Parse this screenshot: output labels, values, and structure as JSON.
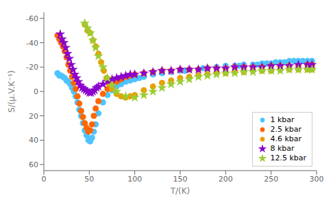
{
  "chart_data": {
    "type": "scatter",
    "xlabel": "T/(K)",
    "ylabel": "S/(μ.V.K⁻¹)",
    "xlim": [
      0,
      300
    ],
    "ylim": [
      65,
      -65
    ],
    "xticks": [
      0,
      50,
      100,
      150,
      200,
      250,
      300
    ],
    "yticks": [
      -60,
      -40,
      -20,
      0,
      20,
      40,
      60
    ],
    "grid": false,
    "legend": "lower right",
    "series": [
      {
        "name": "1 kbar",
        "color": "#4DC3FF",
        "marker": "circle",
        "x": [
          15,
          17,
          19,
          21,
          23,
          25,
          27,
          29,
          31,
          33,
          35,
          37,
          39,
          41,
          43,
          45,
          47,
          49,
          51,
          53,
          55,
          57,
          60,
          65,
          70,
          75,
          80,
          85,
          90,
          95,
          100,
          105,
          110,
          120,
          130,
          140,
          150,
          155,
          160,
          170,
          175,
          180,
          190,
          200,
          210,
          215,
          220,
          230,
          235,
          240,
          245,
          250,
          255,
          260,
          265,
          270,
          275,
          280,
          285,
          290,
          295
        ],
        "values": [
          -15,
          -13,
          -13,
          -12,
          -11,
          -9,
          -8,
          -6,
          -3,
          0,
          4,
          9,
          15,
          20,
          26,
          32,
          36,
          40,
          41,
          38,
          33,
          27,
          18,
          9,
          3,
          -1,
          -4,
          -6,
          -8,
          -9,
          -10,
          -11,
          -12,
          -14,
          -15,
          -16,
          -17,
          -17,
          -18,
          -18,
          -19,
          -19,
          -20,
          -21,
          -21,
          -21,
          -22,
          -22,
          -22,
          -23,
          -23,
          -23,
          -24,
          -24,
          -24,
          -25,
          -25,
          -25,
          -25,
          -25,
          -25
        ]
      },
      {
        "name": "2.5 kbar",
        "color": "#FF6600",
        "marker": "circle",
        "x": [
          15,
          17,
          19,
          21,
          23,
          25,
          27,
          29,
          31,
          33,
          35,
          37,
          39,
          41,
          43,
          45,
          47,
          49,
          51,
          53,
          55,
          57,
          60,
          65,
          70,
          75,
          80,
          85,
          90,
          95,
          100,
          110,
          120,
          130,
          140,
          150,
          160,
          170,
          180,
          190,
          200,
          210,
          220,
          230,
          240,
          250,
          260,
          270,
          280,
          290,
          295
        ],
        "values": [
          -46,
          -43,
          -40,
          -37,
          -33,
          -28,
          -22,
          -17,
          -12,
          -7,
          -2,
          4,
          10,
          16,
          21,
          26,
          30,
          33,
          32,
          27,
          20,
          14,
          8,
          2,
          -2,
          -5,
          -8,
          -10,
          -12,
          -13,
          -14,
          -15,
          -16,
          -17,
          -17,
          -18,
          -18,
          -18,
          -19,
          -19,
          -19,
          -20,
          -20,
          -20,
          -20,
          -21,
          -21,
          -21,
          -21,
          -22,
          -22
        ]
      },
      {
        "name": "4.6 kbar",
        "color": "#E8A000",
        "marker": "circle",
        "x": [
          45,
          48,
          51,
          54,
          57,
          60,
          63,
          66,
          69,
          72,
          75,
          80,
          85,
          90,
          95,
          100,
          110,
          120,
          130,
          140,
          150,
          160,
          170,
          180,
          190,
          200,
          210,
          220,
          230,
          240,
          250,
          260,
          270,
          280,
          290,
          295
        ],
        "values": [
          -55,
          -50,
          -48,
          -42,
          -37,
          -31,
          -24,
          -17,
          -11,
          -6,
          -2,
          2,
          4,
          5,
          4,
          3,
          -1,
          -4,
          -7,
          -9,
          -11,
          -12,
          -13,
          -14,
          -15,
          -15,
          -16,
          -16,
          -17,
          -17,
          -17,
          -18,
          -18,
          -18,
          -18,
          -18
        ]
      },
      {
        "name": "8 kbar",
        "color": "#8B00CC",
        "marker": "star",
        "x": [
          18,
          20,
          22,
          24,
          26,
          28,
          30,
          32,
          34,
          36,
          38,
          40,
          42,
          44,
          46,
          48,
          50,
          52,
          54,
          56,
          58,
          60,
          65,
          70,
          75,
          80,
          85,
          90,
          95,
          100,
          110,
          120,
          130,
          140,
          150,
          160,
          170,
          180,
          190,
          200,
          210,
          220,
          230,
          240,
          250,
          260,
          270,
          280,
          290,
          295
        ],
        "values": [
          -47,
          -43,
          -40,
          -36,
          -31,
          -27,
          -22,
          -18,
          -14,
          -11,
          -8,
          -5,
          -3,
          -2,
          -1,
          0,
          1,
          1,
          0,
          -1,
          -3,
          -4,
          -6,
          -8,
          -10,
          -11,
          -12,
          -13,
          -14,
          -14,
          -15,
          -16,
          -17,
          -17,
          -18,
          -18,
          -18,
          -19,
          -19,
          -19,
          -20,
          -20,
          -20,
          -20,
          -21,
          -21,
          -21,
          -22,
          -22,
          -22
        ]
      },
      {
        "name": "12.5 kbar",
        "color": "#9ACD32",
        "marker": "star",
        "x": [
          45,
          48,
          51,
          54,
          57,
          60,
          65,
          70,
          75,
          80,
          90,
          100,
          110,
          120,
          130,
          140,
          150,
          160,
          170,
          180,
          190,
          200,
          210,
          220,
          230,
          240,
          250,
          260,
          270,
          280,
          290,
          295
        ],
        "values": [
          -56,
          -52,
          -48,
          -42,
          -36,
          -29,
          -20,
          -11,
          -5,
          0,
          4,
          5,
          3,
          0,
          -3,
          -6,
          -8,
          -10,
          -12,
          -13,
          -14,
          -15,
          -15,
          -16,
          -16,
          -17,
          -17,
          -17,
          -18,
          -18,
          -18,
          -18
        ]
      }
    ]
  }
}
